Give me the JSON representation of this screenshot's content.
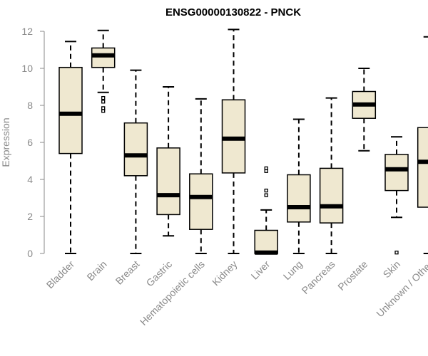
{
  "chart_data": {
    "type": "box",
    "title": "ENSG00000130822 - PNCK",
    "xlabel": "",
    "ylabel": "Expression",
    "ylim": [
      0,
      12
    ],
    "yticks": [
      0,
      2,
      4,
      6,
      8,
      10,
      12
    ],
    "grid": false,
    "box_color": "#efe8d0",
    "categories": [
      "Bladder",
      "Brain",
      "Breast",
      "Gastric",
      "Hematopoietic cells",
      "Kidney",
      "Liver",
      "Lung",
      "Pancreas",
      "Prostate",
      "Skin",
      "Unknown / Other"
    ],
    "boxes": [
      {
        "min": 0.0,
        "q1": 5.4,
        "median": 7.55,
        "q3": 10.05,
        "max": 11.45,
        "outliers": []
      },
      {
        "min": 8.7,
        "q1": 10.05,
        "median": 10.7,
        "q3": 11.1,
        "max": 12.05,
        "outliers": [
          8.4,
          8.2,
          7.85,
          7.7
        ]
      },
      {
        "min": 0.0,
        "q1": 4.2,
        "median": 5.3,
        "q3": 7.05,
        "max": 9.9,
        "outliers": []
      },
      {
        "min": 0.95,
        "q1": 2.1,
        "median": 3.15,
        "q3": 5.7,
        "max": 9.0,
        "outliers": []
      },
      {
        "min": 0.0,
        "q1": 1.3,
        "median": 3.05,
        "q3": 4.3,
        "max": 8.35,
        "outliers": []
      },
      {
        "min": 0.0,
        "q1": 4.35,
        "median": 6.2,
        "q3": 8.3,
        "max": 12.1,
        "outliers": []
      },
      {
        "min": 0.0,
        "q1": 0.0,
        "median": 0.05,
        "q3": 1.25,
        "max": 2.35,
        "outliers": [
          4.6,
          4.45,
          3.4,
          3.15
        ]
      },
      {
        "min": 0.0,
        "q1": 1.7,
        "median": 2.5,
        "q3": 4.25,
        "max": 7.25,
        "outliers": []
      },
      {
        "min": 0.0,
        "q1": 1.65,
        "median": 2.55,
        "q3": 4.6,
        "max": 8.4,
        "outliers": []
      },
      {
        "min": 5.55,
        "q1": 7.3,
        "median": 8.05,
        "q3": 8.75,
        "max": 10.0,
        "outliers": []
      },
      {
        "min": 1.95,
        "q1": 3.4,
        "median": 4.55,
        "q3": 5.35,
        "max": 6.3,
        "outliers": [
          0.05
        ]
      },
      {
        "min": 0.0,
        "q1": 2.5,
        "median": 4.95,
        "q3": 6.8,
        "max": 11.7,
        "outliers": []
      }
    ]
  }
}
